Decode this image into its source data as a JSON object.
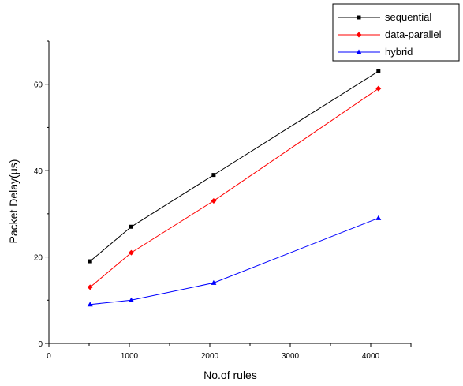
{
  "chart_data": {
    "type": "line",
    "title": "",
    "xlabel": "No.of rules",
    "ylabel": "Packet Delay(μs)",
    "xlim": [
      0,
      4500
    ],
    "ylim": [
      0,
      70
    ],
    "xticks": [
      0,
      1000,
      2000,
      3000,
      4000
    ],
    "yticks": [
      0,
      20,
      40,
      60
    ],
    "x_tick_labels": [
      "0",
      "1000",
      "2000",
      "3000",
      "4000"
    ],
    "y_tick_labels": [
      "0",
      "20",
      "40",
      "60"
    ],
    "grid": false,
    "legend_position": "top-right",
    "x": [
      512,
      1024,
      2048,
      4096
    ],
    "series": [
      {
        "name": "sequential",
        "values": [
          19,
          27,
          39,
          63
        ],
        "color": "#000000",
        "marker": "square"
      },
      {
        "name": "data-parallel",
        "values": [
          13,
          21,
          33,
          59
        ],
        "color": "#ff0000",
        "marker": "diamond"
      },
      {
        "name": "hybrid",
        "values": [
          9,
          10,
          14,
          29
        ],
        "color": "#0000ff",
        "marker": "triangle"
      }
    ]
  }
}
